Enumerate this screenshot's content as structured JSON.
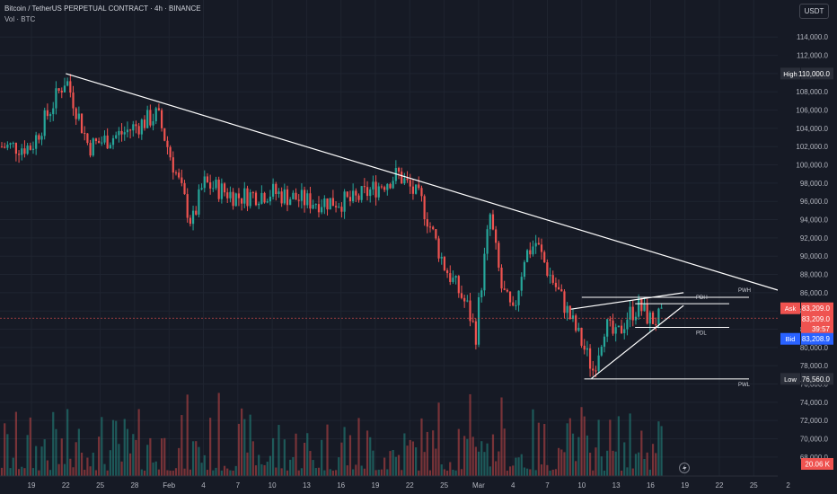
{
  "header": {
    "symbol_line": "Bitcoin / TetherUS PERPETUAL CONTRACT · 4h · BINANCE",
    "volume_line": "Vol · BTC"
  },
  "currency_button": "USDT",
  "colors": {
    "background": "#161a25",
    "up": "#26a69a",
    "down": "#ef5350",
    "axis_text": "#b2b5be",
    "line": "#ffffff",
    "ask": "#ef5350",
    "bid": "#2962ff"
  },
  "chart_data": {
    "type": "candlestick",
    "interval": "4h",
    "y_axis": {
      "position": "right",
      "range": [
        67000,
        115500
      ],
      "ticks": [
        "114,000.0",
        "112,000.0",
        "110,000.0",
        "108,000.0",
        "106,000.0",
        "104,000.0",
        "102,000.0",
        "100,000.0",
        "98,000.0",
        "96,000.0",
        "94,000.0",
        "92,000.0",
        "90,000.0",
        "88,000.0",
        "86,000.0",
        "84,000.0",
        "82,000.0",
        "80,000.0",
        "78,000.0",
        "76,000.0",
        "74,000.0",
        "72,000.0",
        "70,000.0",
        "68,000.0"
      ]
    },
    "x_axis": {
      "ticks": [
        "19",
        "22",
        "25",
        "28",
        "Feb",
        "4",
        "7",
        "10",
        "13",
        "16",
        "19",
        "22",
        "25",
        "Mar",
        "4",
        "7",
        "10",
        "13",
        "16",
        "19",
        "22",
        "25",
        "2"
      ]
    },
    "price_labels": [
      {
        "label": "High",
        "value": "110,000.0"
      },
      {
        "label": "Ask",
        "value": "83,209.0"
      },
      {
        "label": "",
        "value": "83,209.0"
      },
      {
        "label": "",
        "value": "39:57"
      },
      {
        "label": "Bid",
        "value": "83,208.9"
      },
      {
        "label": "Low",
        "value": "76,560.0"
      }
    ],
    "volume_label": "20.06 K",
    "annotations": [
      "PWH",
      "PDH",
      "PDL",
      "PWL"
    ],
    "level_values": {
      "PWH": 85500,
      "PDH": 84800,
      "PDL": 82200,
      "PWL": 76560
    },
    "trendlines": [
      {
        "from": [
          "19",
          110000
        ],
        "to": [
          "2",
          86000
        ]
      },
      {
        "from": [
          "10",
          84200
        ],
        "to": [
          "17",
          86000
        ]
      },
      {
        "from": [
          "10",
          76600
        ],
        "to": [
          "17",
          84600
        ]
      }
    ],
    "key_points": [
      {
        "x": "19",
        "price": 102000
      },
      {
        "x": "22",
        "price": 109500
      },
      {
        "x": "24",
        "price": 102000
      },
      {
        "x": "27",
        "price": 103500
      },
      {
        "x": "30",
        "price": 105500
      },
      {
        "x": "Feb",
        "price": 101500
      },
      {
        "x": "3",
        "price": 93500
      },
      {
        "x": "4",
        "price": 98000
      },
      {
        "x": "7",
        "price": 96500
      },
      {
        "x": "10",
        "price": 97000
      },
      {
        "x": "13",
        "price": 96000
      },
      {
        "x": "17",
        "price": 96000
      },
      {
        "x": "21",
        "price": 99000
      },
      {
        "x": "23",
        "price": 96000
      },
      {
        "x": "25",
        "price": 89000
      },
      {
        "x": "27",
        "price": 84500
      },
      {
        "x": "28",
        "price": 80500
      },
      {
        "x": "Mar",
        "price": 84500
      },
      {
        "x": "2",
        "price": 94500
      },
      {
        "x": "3",
        "price": 86500
      },
      {
        "x": "4",
        "price": 83500
      },
      {
        "x": "5",
        "price": 90000
      },
      {
        "x": "6",
        "price": 91500
      },
      {
        "x": "7",
        "price": 88500
      },
      {
        "x": "8",
        "price": 86000
      },
      {
        "x": "10",
        "price": 80500
      },
      {
        "x": "11",
        "price": 77500
      },
      {
        "x": "12",
        "price": 82500
      },
      {
        "x": "13",
        "price": 81000
      },
      {
        "x": "14",
        "price": 83500
      },
      {
        "x": "15",
        "price": 84500
      },
      {
        "x": "16",
        "price": 83000
      },
      {
        "x": "17",
        "price": 83209
      }
    ]
  }
}
